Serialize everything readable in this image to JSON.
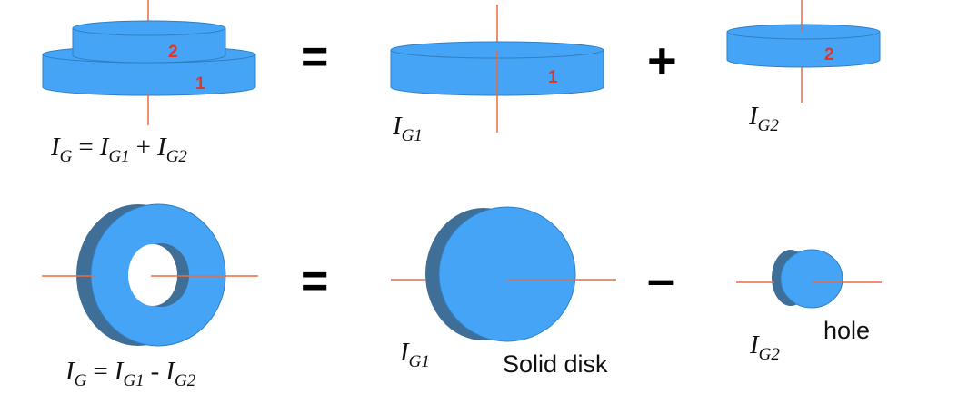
{
  "colors": {
    "disk_fill": "#45a4f5",
    "disk_edge": "#2f7fc4",
    "ring_shadow": "#3f6f96",
    "axis_line": "#ed6a3f",
    "part_number": "#e0352b"
  },
  "top_row": {
    "left_part_numbers": [
      "2",
      "1"
    ],
    "operator_equals": "=",
    "middle_part_number": "1",
    "operator_plus": "+",
    "right_part_number": "2",
    "formula": {
      "lhs": "I",
      "lhs_sub": "G",
      "eq": "=",
      "t1": "I",
      "t1_sub": "G1",
      "op": "+",
      "t2": "I",
      "t2_sub": "G2"
    },
    "label_g1": {
      "base": "I",
      "sub": "G1"
    },
    "label_g2": {
      "base": "I",
      "sub": "G2"
    }
  },
  "bottom_row": {
    "operator_equals": "=",
    "operator_minus": "–",
    "formula": {
      "lhs": "I",
      "lhs_sub": "G",
      "eq": "=",
      "t1": "I",
      "t1_sub": "G1",
      "op": "-",
      "t2": "I",
      "t2_sub": "G2"
    },
    "label_g1": {
      "base": "I",
      "sub": "G1"
    },
    "label_g2": {
      "base": "I",
      "sub": "G2"
    },
    "solid_disk_caption": "Solid disk",
    "hole_caption": "hole"
  }
}
